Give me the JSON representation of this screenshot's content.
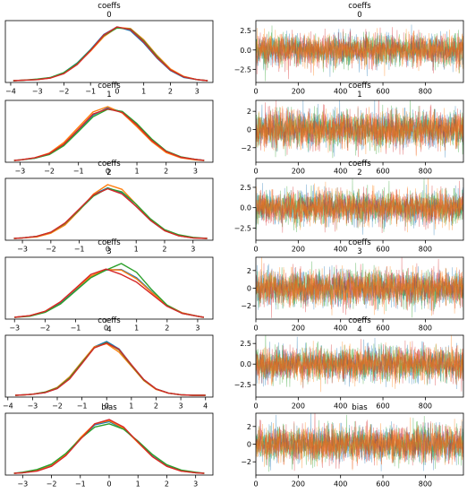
{
  "colors": [
    "#1f77b4",
    "#ff7f0e",
    "#2ca02c",
    "#d62728",
    "#9467bd"
  ],
  "chart_data": [
    {
      "type": "line",
      "row": 0,
      "kind": "density",
      "title": "coeffs\n0",
      "xlim": [
        -4.2,
        3.6
      ],
      "xticks": [
        -4,
        -3,
        -2,
        -1,
        0,
        1,
        2,
        3
      ],
      "xtick_labels": [
        "−4",
        "−3",
        "−2",
        "−1",
        "0",
        "1",
        "2",
        "3"
      ],
      "yticks": [],
      "ytick_labels": [],
      "x": [
        -3.9,
        -3.5,
        -3,
        -2.5,
        -2,
        -1.5,
        -1,
        -0.5,
        0,
        0.5,
        1,
        1.5,
        2,
        2.5,
        3,
        3.4
      ],
      "series": [
        {
          "values": [
            0.0,
            0.01,
            0.02,
            0.06,
            0.15,
            0.33,
            0.58,
            0.86,
            1.0,
            0.93,
            0.7,
            0.42,
            0.19,
            0.06,
            0.02,
            0.0
          ]
        },
        {
          "values": [
            0.0,
            0.01,
            0.02,
            0.05,
            0.14,
            0.31,
            0.55,
            0.82,
            0.99,
            0.97,
            0.76,
            0.47,
            0.22,
            0.08,
            0.02,
            0.0
          ]
        },
        {
          "values": [
            0.0,
            0.01,
            0.03,
            0.06,
            0.15,
            0.32,
            0.57,
            0.84,
            0.98,
            0.96,
            0.74,
            0.45,
            0.2,
            0.07,
            0.02,
            0.0
          ]
        },
        {
          "values": [
            0.0,
            0.01,
            0.02,
            0.05,
            0.13,
            0.3,
            0.56,
            0.85,
            1.0,
            0.95,
            0.72,
            0.43,
            0.2,
            0.07,
            0.02,
            0.0
          ]
        }
      ]
    },
    {
      "type": "line",
      "row": 0,
      "kind": "trace",
      "title": "coeffs\n0",
      "xlim": [
        0,
        980
      ],
      "ylim": [
        -4.2,
        3.8
      ],
      "xticks": [
        0,
        200,
        400,
        600,
        800
      ],
      "xtick_labels": [
        "0",
        "200",
        "400",
        "600",
        "800"
      ],
      "yticks": [
        -2.5,
        0,
        2.5
      ],
      "ytick_labels": [
        "−2.5",
        "0.0",
        "2.5"
      ],
      "n_samples": 1000,
      "amplitude": 1.0
    },
    {
      "type": "line",
      "row": 1,
      "kind": "density",
      "title": "coeffs\n1",
      "xlim": [
        -3.5,
        3.6
      ],
      "xticks": [
        -3,
        -2,
        -1,
        0,
        1,
        2,
        3
      ],
      "xtick_labels": [
        "−3",
        "−2",
        "−1",
        "0",
        "1",
        "2",
        "3"
      ],
      "yticks": [],
      "ytick_labels": [],
      "x": [
        -3.2,
        -3,
        -2.5,
        -2,
        -1.5,
        -1,
        -0.5,
        0,
        0.5,
        1,
        1.5,
        2,
        2.5,
        3,
        3.3
      ],
      "series": [
        {
          "values": [
            0.0,
            0.01,
            0.04,
            0.12,
            0.3,
            0.58,
            0.86,
            1.0,
            0.92,
            0.68,
            0.39,
            0.17,
            0.06,
            0.02,
            0.0
          ]
        },
        {
          "values": [
            0.0,
            0.01,
            0.05,
            0.14,
            0.34,
            0.63,
            0.92,
            1.02,
            0.9,
            0.64,
            0.36,
            0.15,
            0.05,
            0.01,
            0.0
          ]
        },
        {
          "values": [
            0.0,
            0.01,
            0.04,
            0.11,
            0.28,
            0.55,
            0.83,
            0.97,
            0.93,
            0.7,
            0.41,
            0.18,
            0.07,
            0.02,
            0.0
          ]
        },
        {
          "values": [
            0.0,
            0.01,
            0.05,
            0.13,
            0.31,
            0.59,
            0.88,
            0.98,
            0.91,
            0.67,
            0.38,
            0.17,
            0.06,
            0.02,
            0.0
          ]
        }
      ]
    },
    {
      "type": "line",
      "row": 1,
      "kind": "trace",
      "title": "coeffs\n1",
      "xlim": [
        0,
        980
      ],
      "ylim": [
        -3.6,
        3.2
      ],
      "xticks": [
        0,
        200,
        400,
        600,
        800
      ],
      "xtick_labels": [
        "0",
        "200",
        "400",
        "600",
        "800"
      ],
      "yticks": [
        -2,
        0,
        2
      ],
      "ytick_labels": [
        "−2",
        "0",
        "2"
      ],
      "n_samples": 1000,
      "amplitude": 1.0
    },
    {
      "type": "line",
      "row": 2,
      "kind": "density",
      "title": "coeffs\n2",
      "xlim": [
        -3.6,
        3.7
      ],
      "xticks": [
        -3,
        -2,
        -1,
        0,
        1,
        2,
        3
      ],
      "xtick_labels": [
        "−3",
        "−2",
        "−1",
        "0",
        "1",
        "2",
        "3"
      ],
      "yticks": [],
      "ytick_labels": [],
      "x": [
        -3.3,
        -3,
        -2.5,
        -2,
        -1.5,
        -1,
        -0.5,
        0,
        0.5,
        1,
        1.5,
        2,
        2.5,
        3,
        3.5
      ],
      "series": [
        {
          "values": [
            0.0,
            0.01,
            0.04,
            0.11,
            0.28,
            0.56,
            0.85,
            0.98,
            0.88,
            0.62,
            0.35,
            0.15,
            0.05,
            0.01,
            0.0
          ]
        },
        {
          "values": [
            0.0,
            0.01,
            0.03,
            0.1,
            0.26,
            0.54,
            0.86,
            1.04,
            0.95,
            0.66,
            0.36,
            0.15,
            0.05,
            0.01,
            0.0
          ]
        },
        {
          "values": [
            0.0,
            0.01,
            0.04,
            0.12,
            0.29,
            0.55,
            0.82,
            0.97,
            0.9,
            0.66,
            0.38,
            0.17,
            0.07,
            0.02,
            0.0
          ]
        },
        {
          "values": [
            0.0,
            0.01,
            0.04,
            0.12,
            0.3,
            0.57,
            0.84,
            0.96,
            0.86,
            0.62,
            0.35,
            0.15,
            0.05,
            0.01,
            0.0
          ]
        }
      ]
    },
    {
      "type": "line",
      "row": 2,
      "kind": "trace",
      "title": "coeffs\n2",
      "xlim": [
        0,
        980
      ],
      "ylim": [
        -4.0,
        3.6
      ],
      "xticks": [
        0,
        200,
        400,
        600,
        800
      ],
      "xtick_labels": [
        "0",
        "200",
        "400",
        "600",
        "800"
      ],
      "yticks": [
        -2.5,
        0,
        2.5
      ],
      "ytick_labels": [
        "−2.5",
        "0.0",
        "2.5"
      ],
      "n_samples": 1000,
      "amplitude": 1.0
    },
    {
      "type": "line",
      "row": 3,
      "kind": "density",
      "title": "coeffs\n3",
      "xlim": [
        -3.3,
        3.5
      ],
      "xticks": [
        -3,
        -2,
        -1,
        0,
        1,
        2,
        3
      ],
      "xtick_labels": [
        "−3",
        "−2",
        "−1",
        "0",
        "1",
        "2",
        "3"
      ],
      "yticks": [],
      "ytick_labels": [],
      "x": [
        -3,
        -2.5,
        -2,
        -1.5,
        -1,
        -0.5,
        0,
        0.5,
        1,
        1.5,
        2,
        2.5,
        3,
        3.2
      ],
      "series": [
        {
          "values": [
            0.0,
            0.03,
            0.1,
            0.26,
            0.5,
            0.74,
            0.86,
            0.87,
            0.72,
            0.46,
            0.22,
            0.08,
            0.02,
            0.0
          ]
        },
        {
          "values": [
            0.0,
            0.03,
            0.11,
            0.28,
            0.52,
            0.75,
            0.87,
            0.86,
            0.7,
            0.45,
            0.22,
            0.08,
            0.02,
            0.0
          ]
        },
        {
          "values": [
            0.0,
            0.02,
            0.09,
            0.24,
            0.48,
            0.72,
            0.86,
            0.98,
            0.82,
            0.5,
            0.22,
            0.07,
            0.02,
            0.0
          ]
        },
        {
          "values": [
            0.0,
            0.03,
            0.11,
            0.28,
            0.53,
            0.78,
            0.88,
            0.78,
            0.64,
            0.42,
            0.2,
            0.07,
            0.02,
            0.0
          ]
        }
      ]
    },
    {
      "type": "line",
      "row": 3,
      "kind": "trace",
      "title": "coeffs\n3",
      "xlim": [
        0,
        980
      ],
      "ylim": [
        -3.5,
        3.5
      ],
      "xticks": [
        0,
        200,
        400,
        600,
        800
      ],
      "xtick_labels": [
        "0",
        "200",
        "400",
        "600",
        "800"
      ],
      "yticks": [
        -2,
        0,
        2
      ],
      "ytick_labels": [
        "−2",
        "0",
        "2"
      ],
      "n_samples": 1000,
      "amplitude": 1.0
    },
    {
      "type": "line",
      "row": 4,
      "kind": "density",
      "title": "coeffs\n4",
      "xlim": [
        -4.1,
        4.3
      ],
      "xticks": [
        -4,
        -3,
        -2,
        -1,
        0,
        1,
        2,
        3,
        4
      ],
      "xtick_labels": [
        "−4",
        "−3",
        "−2",
        "−1",
        "0",
        "1",
        "2",
        "3",
        "4"
      ],
      "yticks": [],
      "ytick_labels": [],
      "x": [
        -3.7,
        -3.3,
        -3,
        -2.5,
        -2,
        -1.5,
        -1,
        -0.5,
        0,
        0.5,
        1,
        1.5,
        2,
        2.5,
        3,
        3.5,
        4
      ],
      "series": [
        {
          "values": [
            0.0,
            0.01,
            0.02,
            0.05,
            0.13,
            0.32,
            0.62,
            0.92,
            1.02,
            0.88,
            0.58,
            0.3,
            0.12,
            0.04,
            0.01,
            0.0,
            0.0
          ]
        },
        {
          "values": [
            0.0,
            0.01,
            0.02,
            0.06,
            0.15,
            0.35,
            0.64,
            0.92,
            0.98,
            0.82,
            0.55,
            0.28,
            0.11,
            0.04,
            0.01,
            0.0,
            0.0
          ]
        },
        {
          "values": [
            0.0,
            0.01,
            0.02,
            0.06,
            0.14,
            0.33,
            0.62,
            0.9,
            1.0,
            0.86,
            0.57,
            0.29,
            0.12,
            0.04,
            0.01,
            0.0,
            0.0
          ]
        },
        {
          "values": [
            0.0,
            0.01,
            0.02,
            0.05,
            0.13,
            0.31,
            0.6,
            0.9,
            0.99,
            0.87,
            0.58,
            0.3,
            0.12,
            0.04,
            0.01,
            0.0,
            0.0
          ]
        }
      ]
    },
    {
      "type": "line",
      "row": 4,
      "kind": "trace",
      "title": "coeffs\n4",
      "xlim": [
        0,
        980
      ],
      "ylim": [
        -4.0,
        3.5
      ],
      "xticks": [
        0,
        200,
        400,
        600,
        800
      ],
      "xtick_labels": [
        "0",
        "200",
        "400",
        "600",
        "800"
      ],
      "yticks": [
        -2.5,
        0,
        2.5
      ],
      "ytick_labels": [
        "−2.5",
        "0.0",
        "2.5"
      ],
      "n_samples": 1000,
      "amplitude": 1.0
    },
    {
      "type": "line",
      "row": 5,
      "kind": "density",
      "title": "bias",
      "xlim": [
        -3.6,
        3.6
      ],
      "xticks": [
        -3,
        -2,
        -1,
        0,
        1,
        2,
        3
      ],
      "xtick_labels": [
        "−3",
        "−2",
        "−1",
        "0",
        "1",
        "2",
        "3"
      ],
      "yticks": [],
      "ytick_labels": [],
      "x": [
        -3.3,
        -3,
        -2.5,
        -2,
        -1.5,
        -1,
        -0.5,
        0,
        0.5,
        1,
        1.5,
        2,
        2.5,
        3,
        3.3
      ],
      "series": [
        {
          "values": [
            0.0,
            0.01,
            0.05,
            0.15,
            0.36,
            0.65,
            0.9,
            0.96,
            0.83,
            0.58,
            0.32,
            0.14,
            0.05,
            0.01,
            0.0
          ]
        },
        {
          "values": [
            0.0,
            0.01,
            0.05,
            0.14,
            0.35,
            0.66,
            0.92,
            0.98,
            0.84,
            0.57,
            0.31,
            0.13,
            0.04,
            0.01,
            0.0
          ]
        },
        {
          "values": [
            0.0,
            0.02,
            0.07,
            0.17,
            0.37,
            0.64,
            0.86,
            0.92,
            0.82,
            0.6,
            0.35,
            0.16,
            0.06,
            0.02,
            0.0
          ]
        },
        {
          "values": [
            0.0,
            0.01,
            0.04,
            0.13,
            0.33,
            0.63,
            0.92,
            1.0,
            0.86,
            0.58,
            0.31,
            0.13,
            0.04,
            0.01,
            0.0
          ]
        }
      ]
    },
    {
      "type": "line",
      "row": 5,
      "kind": "trace",
      "title": "bias",
      "xlim": [
        0,
        980
      ],
      "ylim": [
        -3.5,
        3.5
      ],
      "xticks": [
        0,
        200,
        400,
        600,
        800
      ],
      "xtick_labels": [
        "0",
        "200",
        "400",
        "600",
        "800"
      ],
      "yticks": [
        -2,
        0,
        2
      ],
      "ytick_labels": [
        "−2",
        "0",
        "2"
      ],
      "n_samples": 1000,
      "amplitude": 1.0
    }
  ]
}
